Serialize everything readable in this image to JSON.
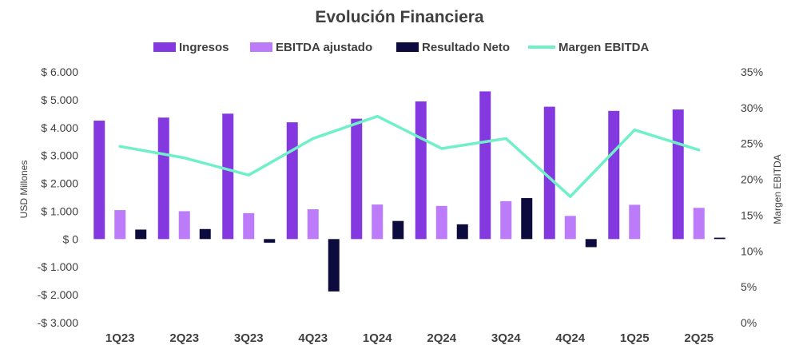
{
  "chart_data": {
    "type": "bar",
    "title": "Evolución Financiera",
    "categories": [
      "1Q23",
      "2Q23",
      "3Q23",
      "4Q23",
      "1Q24",
      "2Q24",
      "3Q24",
      "4Q24",
      "1Q25",
      "2Q25"
    ],
    "series": [
      {
        "name": "Ingresos",
        "type": "bar",
        "axis": "left",
        "color": "#8338E0",
        "values": [
          4250,
          4360,
          4500,
          4190,
          4320,
          4940,
          5300,
          4750,
          4600,
          4650
        ]
      },
      {
        "name": "EBITDA ajustado",
        "type": "bar",
        "axis": "left",
        "color": "#BC7CF9",
        "values": [
          1040,
          1000,
          930,
          1070,
          1240,
          1190,
          1360,
          830,
          1230,
          1120
        ]
      },
      {
        "name": "Resultado Neto",
        "type": "bar",
        "axis": "left",
        "color": "#0D0A3E",
        "values": [
          340,
          360,
          -130,
          -1880,
          650,
          530,
          1470,
          -290,
          0,
          50
        ]
      },
      {
        "name": "Margen EBITDA",
        "type": "line",
        "axis": "right",
        "color": "#6FF0C8",
        "values": [
          24.6,
          23.0,
          20.6,
          25.7,
          28.8,
          24.3,
          25.7,
          17.6,
          26.9,
          24.1
        ]
      }
    ],
    "ylabel": "USD Millones",
    "ylim": [
      -3000,
      6000
    ],
    "yticks": [
      6000,
      5000,
      4000,
      3000,
      2000,
      1000,
      0,
      -1000,
      -2000,
      -3000
    ],
    "ytick_labels": [
      "$ 6.000",
      "$ 5.000",
      "$ 4.000",
      "$ 3.000",
      "$ 2.000",
      "$ 1.000",
      "$ 0",
      "-$ 1.000",
      "-$ 2.000",
      "-$ 3.000"
    ],
    "y2label": "Margen EBITDA",
    "y2lim": [
      0,
      35
    ],
    "y2ticks": [
      35,
      30,
      25,
      20,
      15,
      10,
      5,
      0
    ],
    "y2tick_labels": [
      "35%",
      "30%",
      "25%",
      "20%",
      "15%",
      "10%",
      "5%",
      "0%"
    ],
    "legend_position": "top",
    "grid": false
  }
}
